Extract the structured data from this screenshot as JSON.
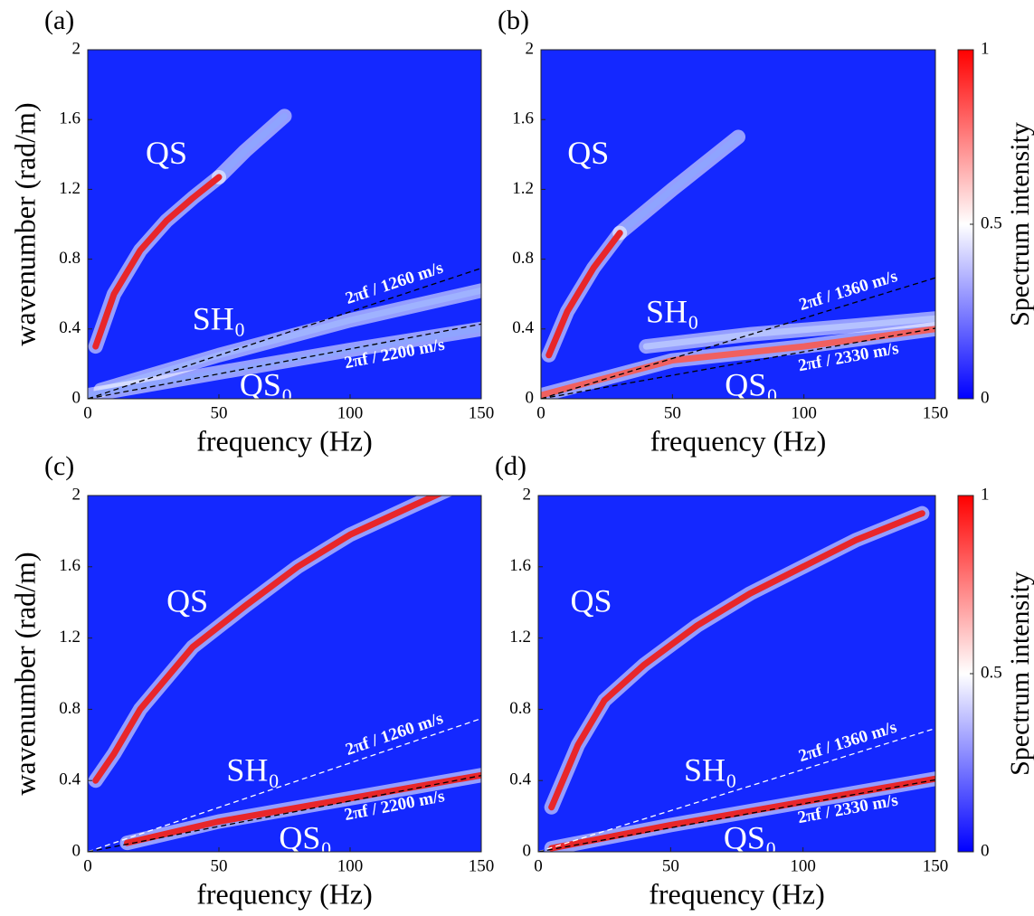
{
  "chart_data": [
    {
      "type": "heatmap",
      "panel": "(a)",
      "xlabel": "frequency (Hz)",
      "ylabel": "wavenumber (rad/m)",
      "xlim": [
        0,
        150
      ],
      "ylim": [
        0,
        2
      ],
      "xticks": [
        0,
        50,
        100,
        150
      ],
      "yticks": [
        0,
        0.4,
        0.8,
        1.2,
        1.6,
        2
      ],
      "background": "#1428ff",
      "series": [
        {
          "color": "#8fa4ff",
          "x": [
            50,
            60,
            75
          ],
          "values": [
            1.27,
            1.42,
            1.62
          ]
        },
        {
          "color": "#9fb2ff",
          "x": [
            5,
            50,
            100,
            150
          ],
          "values": [
            0.05,
            0.25,
            0.45,
            0.62
          ]
        },
        {
          "color": "#8fa4ff",
          "x": [
            0,
            50,
            100,
            150
          ],
          "values": [
            0.02,
            0.15,
            0.28,
            0.4
          ]
        },
        {
          "color": "#e8262a",
          "x": [
            3,
            10,
            20,
            30,
            40,
            50
          ],
          "values": [
            0.3,
            0.6,
            0.85,
            1.02,
            1.15,
            1.27
          ]
        }
      ],
      "lines": [
        {
          "label": "2πf / 1260 m/s",
          "color": "#000000",
          "x": [
            0,
            150
          ],
          "values": [
            0,
            0.748
          ]
        },
        {
          "label": "2πf / 2200 m/s",
          "color": "#000000",
          "x": [
            0,
            150
          ],
          "values": [
            0,
            0.428
          ]
        }
      ],
      "annotations": [
        {
          "text": "QS",
          "x": 30,
          "y": 1.39
        },
        {
          "text": "SH₀",
          "x": 50,
          "y": 0.44
        },
        {
          "text": "QS₀",
          "x": 68,
          "y": 0.06
        }
      ]
    },
    {
      "type": "heatmap",
      "panel": "(b)",
      "xlabel": "frequency (Hz)",
      "xlim": [
        0,
        150
      ],
      "ylim": [
        0,
        2
      ],
      "xticks": [
        0,
        50,
        100,
        150
      ],
      "yticks": [
        0,
        0.4,
        0.8,
        1.2,
        1.6,
        2
      ],
      "background": "#1428ff",
      "series": [
        {
          "color": "#8fa4ff",
          "x": [
            30,
            50,
            75
          ],
          "values": [
            0.95,
            1.2,
            1.5
          ]
        },
        {
          "color": "#b5c2ff",
          "x": [
            40,
            80,
            120,
            150
          ],
          "values": [
            0.3,
            0.37,
            0.42,
            0.46
          ]
        },
        {
          "color": "#f06060",
          "x": [
            0,
            50,
            100,
            150
          ],
          "values": [
            0.02,
            0.22,
            0.3,
            0.4
          ]
        },
        {
          "color": "#e8262a",
          "x": [
            3,
            10,
            20,
            30
          ],
          "values": [
            0.25,
            0.5,
            0.75,
            0.95
          ]
        }
      ],
      "lines": [
        {
          "label": "2πf / 1360 m/s",
          "color": "#000000",
          "x": [
            0,
            150
          ],
          "values": [
            0,
            0.693
          ]
        },
        {
          "label": "2πf / 2330 m/s",
          "color": "#000000",
          "x": [
            0,
            150
          ],
          "values": [
            0,
            0.404
          ]
        }
      ],
      "colorbar": {
        "label": "Spectrum intensity",
        "lim": [
          0,
          1
        ],
        "ticks": [
          0,
          0.5,
          1
        ],
        "colors": [
          "#0000ff",
          "#ffffff",
          "#ff0000"
        ]
      },
      "annotations": [
        {
          "text": "QS",
          "x": 18,
          "y": 1.39
        },
        {
          "text": "SH₀",
          "x": 50,
          "y": 0.48
        },
        {
          "text": "QS₀",
          "x": 80,
          "y": 0.06
        }
      ]
    },
    {
      "type": "heatmap",
      "panel": "(c)",
      "xlabel": "frequency (Hz)",
      "ylabel": "wavenumber (rad/m)",
      "xlim": [
        0,
        150
      ],
      "ylim": [
        0,
        2
      ],
      "xticks": [
        0,
        50,
        100,
        150
      ],
      "yticks": [
        0,
        0.4,
        0.8,
        1.2,
        1.6,
        2
      ],
      "background": "#1428ff",
      "series": [
        {
          "color": "#e8262a",
          "x": [
            3,
            10,
            20,
            40,
            60,
            80,
            100,
            125,
            140
          ],
          "values": [
            0.4,
            0.55,
            0.8,
            1.15,
            1.38,
            1.6,
            1.78,
            1.95,
            2.05
          ]
        },
        {
          "color": "#e8262a",
          "x": [
            15,
            50,
            100,
            150
          ],
          "values": [
            0.05,
            0.17,
            0.3,
            0.43
          ]
        }
      ],
      "lines": [
        {
          "label": "2πf / 1260 m/s",
          "color": "#ffffff",
          "x": [
            0,
            150
          ],
          "values": [
            0,
            0.748
          ]
        },
        {
          "label": "2πf / 2200 m/s",
          "color": "#000000",
          "x": [
            0,
            150
          ],
          "values": [
            0,
            0.428
          ]
        }
      ],
      "annotations": [
        {
          "text": "QS",
          "x": 38,
          "y": 1.39
        },
        {
          "text": "SH₀",
          "x": 63,
          "y": 0.44
        },
        {
          "text": "QS₀",
          "x": 83,
          "y": 0.06
        }
      ]
    },
    {
      "type": "heatmap",
      "panel": "(d)",
      "xlabel": "frequency (Hz)",
      "xlim": [
        0,
        150
      ],
      "ylim": [
        0,
        2
      ],
      "xticks": [
        0,
        50,
        100,
        150
      ],
      "yticks": [
        0,
        0.4,
        0.8,
        1.2,
        1.6,
        2
      ],
      "background": "#1428ff",
      "series": [
        {
          "color": "#e8262a",
          "x": [
            5,
            15,
            25,
            40,
            60,
            80,
            100,
            120,
            145
          ],
          "values": [
            0.25,
            0.6,
            0.85,
            1.05,
            1.27,
            1.45,
            1.6,
            1.75,
            1.9
          ]
        },
        {
          "color": "#e8262a",
          "x": [
            5,
            50,
            100,
            150
          ],
          "values": [
            0.02,
            0.15,
            0.28,
            0.41
          ]
        }
      ],
      "lines": [
        {
          "label": "2πf / 1360 m/s",
          "color": "#ffffff",
          "x": [
            0,
            150
          ],
          "values": [
            0,
            0.693
          ]
        },
        {
          "label": "2πf / 2330 m/s",
          "color": "#000000",
          "x": [
            0,
            150
          ],
          "values": [
            0,
            0.404
          ]
        }
      ],
      "colorbar": {
        "label": "Spectrum intensity",
        "lim": [
          0,
          1
        ],
        "ticks": [
          0,
          0.5,
          1
        ],
        "colors": [
          "#0000ff",
          "#ffffff",
          "#ff0000"
        ]
      },
      "annotations": [
        {
          "text": "QS",
          "x": 20,
          "y": 1.39
        },
        {
          "text": "SH₀",
          "x": 65,
          "y": 0.44
        },
        {
          "text": "QS₀",
          "x": 80,
          "y": 0.06
        }
      ]
    }
  ]
}
